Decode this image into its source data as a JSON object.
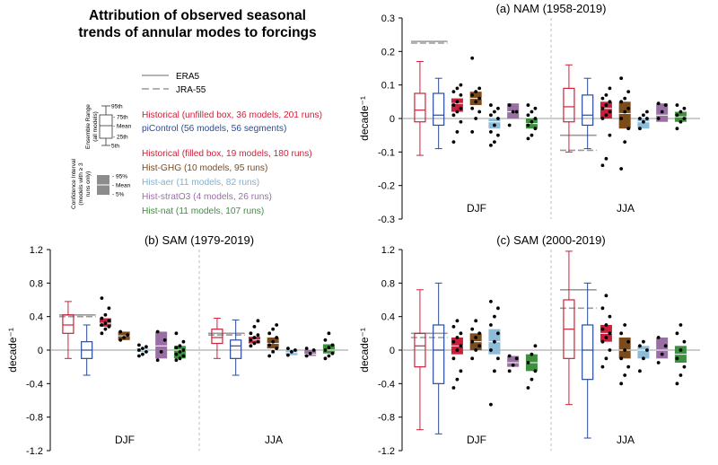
{
  "figure": {
    "title_lines": [
      "Attribution of observed seasonal",
      "trends of annular modes to forcings"
    ]
  },
  "legend": {
    "reanalyses": [
      {
        "label": "ERA5",
        "style": "solid",
        "color": "#a0a0a0"
      },
      {
        "label": "JRA-55",
        "style": "dashed",
        "color": "#a0a0a0"
      }
    ],
    "ensemble_range": {
      "title_lines": [
        "Ensemble Range",
        "(all models)"
      ],
      "labels": [
        "95th",
        "75th",
        "Mean",
        "25th",
        "5th"
      ]
    },
    "confidence_interval": {
      "title_lines": [
        "Confidence Interval",
        "(models with ≥ 3",
        "runs only)"
      ],
      "labels": [
        "95%",
        "Mean",
        "5%"
      ]
    },
    "entries": [
      {
        "text": "Historical (unfilled box, 36 models, 201 runs)",
        "color": "#d0213a"
      },
      {
        "text": "piControl (56 models, 56 segments)",
        "color": "#2a4b9b"
      },
      {
        "text": "Historical (filled box, 19 models, 180 runs)",
        "color": "#d0213a"
      },
      {
        "text": "Hist-GHG (10 models, 95 runs)",
        "color": "#7b4b1c"
      },
      {
        "text": "Hist-aer (11 models, 82 runs)",
        "color": "#7fb2d1"
      },
      {
        "text": "Hist-stratO3 (4 models, 26 runs)",
        "color": "#9a6fa6"
      },
      {
        "text": "Hist-nat (11 models, 107 runs)",
        "color": "#3e8f3e"
      }
    ]
  },
  "colors": {
    "historical": "#d0213a",
    "picontrol": "#2a4b9b",
    "hist_historical_fill": "#c8203a",
    "hist_ghg": "#7b4b1c",
    "hist_aer": "#8dbcd8",
    "hist_strato3": "#9a6fa6",
    "hist_nat": "#3e8f3e",
    "reanalysis": "#9a9a9a",
    "zero_line": "#9a9a9a"
  },
  "chart_data": [
    {
      "type": "box",
      "title": "(a) NAM (1958-2019)",
      "ylabel": "decade⁻¹",
      "ylim": [
        -0.3,
        0.3
      ],
      "yticks": [
        "-0.3",
        "-0.2",
        "-0.1",
        "0",
        "0.1",
        "0.2",
        "0.3"
      ],
      "seasons": [
        {
          "label": "DJF",
          "era5": 0.23,
          "jra55": 0.225,
          "ensemble_boxes": [
            {
              "series": "historical",
              "p5": -0.11,
              "p25": -0.01,
              "mean": 0.025,
              "p75": 0.075,
              "p95": 0.17
            },
            {
              "series": "picontrol",
              "p5": -0.09,
              "p25": -0.02,
              "mean": 0.01,
              "p75": 0.075,
              "p95": 0.12
            }
          ],
          "ci_boxes": [
            {
              "series": "hist_historical_fill",
              "p5": 0.02,
              "mean": 0.045,
              "p95": 0.06,
              "dots": [
                -0.07,
                -0.04,
                -0.01,
                0.01,
                0.02,
                0.03,
                0.04,
                0.05,
                0.07,
                0.08,
                0.09,
                0.1
              ]
            },
            {
              "series": "hist_ghg",
              "p5": 0.04,
              "mean": 0.06,
              "p95": 0.08,
              "dots": [
                -0.04,
                0.0,
                0.02,
                0.03,
                0.05,
                0.06,
                0.07,
                0.08,
                0.09,
                0.18
              ]
            },
            {
              "series": "hist_aer",
              "p5": -0.03,
              "mean": -0.01,
              "p95": 0.0,
              "dots": [
                -0.08,
                -0.07,
                -0.05,
                -0.04,
                -0.02,
                0.0,
                0.01,
                0.02,
                0.03,
                0.04
              ]
            },
            {
              "series": "hist_strato3",
              "p5": 0.0,
              "mean": 0.02,
              "p95": 0.045,
              "dots": [
                -0.02,
                0.02,
                0.02,
                0.04
              ]
            },
            {
              "series": "hist_nat",
              "p5": -0.03,
              "mean": -0.015,
              "p95": 0.0,
              "dots": [
                -0.06,
                -0.05,
                -0.03,
                -0.02,
                -0.01,
                0.0,
                0.01,
                0.02,
                0.03,
                0.04
              ]
            }
          ]
        },
        {
          "label": "JJA",
          "era5": -0.05,
          "jra55": -0.095,
          "ensemble_boxes": [
            {
              "series": "historical",
              "p5": -0.1,
              "p25": -0.01,
              "mean": 0.035,
              "p75": 0.09,
              "p95": 0.16
            },
            {
              "series": "picontrol",
              "p5": -0.09,
              "p25": -0.02,
              "mean": 0.01,
              "p75": 0.07,
              "p95": 0.12
            }
          ],
          "ci_boxes": [
            {
              "series": "hist_historical_fill",
              "p5": 0.0,
              "mean": 0.03,
              "p95": 0.05,
              "dots": [
                -0.14,
                -0.12,
                -0.05,
                0.0,
                0.01,
                0.02,
                0.03,
                0.04,
                0.05,
                0.06,
                0.07,
                0.09
              ]
            },
            {
              "series": "hist_ghg",
              "p5": -0.03,
              "mean": 0.015,
              "p95": 0.05,
              "dots": [
                -0.15,
                -0.07,
                -0.03,
                0.0,
                0.02,
                0.03,
                0.05,
                0.06,
                0.08,
                0.12
              ]
            },
            {
              "series": "hist_aer",
              "p5": -0.03,
              "mean": -0.01,
              "p95": 0.0,
              "dots": [
                -0.03,
                -0.01,
                0.0,
                0.0,
                0.01,
                0.02
              ]
            },
            {
              "series": "hist_strato3",
              "p5": -0.01,
              "mean": 0.01,
              "p95": 0.045,
              "dots": [
                0.0,
                0.02,
                0.04,
                0.045
              ]
            },
            {
              "series": "hist_nat",
              "p5": -0.01,
              "mean": 0.005,
              "p95": 0.02,
              "dots": [
                -0.03,
                -0.01,
                0.0,
                0.01,
                0.02,
                0.03,
                0.04
              ]
            }
          ]
        }
      ]
    },
    {
      "type": "box",
      "title": "(b) SAM (1979-2019)",
      "ylabel": "decade⁻¹",
      "ylim": [
        -1.2,
        1.2
      ],
      "yticks": [
        "-1.2",
        "-0.8",
        "-0.4",
        "0",
        "0.4",
        "0.8",
        "1.2"
      ],
      "seasons": [
        {
          "label": "DJF",
          "era5": 0.42,
          "jra55": 0.4,
          "ensemble_boxes": [
            {
              "series": "historical",
              "p5": -0.1,
              "p25": 0.2,
              "mean": 0.3,
              "p75": 0.42,
              "p95": 0.58
            },
            {
              "series": "picontrol",
              "p5": -0.3,
              "p25": -0.1,
              "mean": 0.0,
              "p75": 0.1,
              "p95": 0.3
            }
          ],
          "ci_boxes": [
            {
              "series": "hist_historical_fill",
              "p5": 0.28,
              "mean": 0.32,
              "p95": 0.38,
              "dots": [
                0.2,
                0.25,
                0.28,
                0.3,
                0.32,
                0.35,
                0.38,
                0.42,
                0.5,
                0.62
              ]
            },
            {
              "series": "hist_ghg",
              "p5": 0.12,
              "mean": 0.17,
              "p95": 0.22,
              "dots": [
                0.12,
                0.15,
                0.18,
                0.22
              ]
            },
            {
              "series": "hist_aer",
              "p5": -0.02,
              "mean": 0.0,
              "p95": 0.02,
              "dots": [
                -0.07,
                -0.05,
                -0.02,
                0.0,
                0.02,
                0.04,
                0.06
              ]
            },
            {
              "series": "hist_strato3",
              "p5": -0.1,
              "mean": 0.05,
              "p95": 0.22,
              "dots": [
                -0.12,
                -0.02,
                0.12,
                0.22
              ]
            },
            {
              "series": "hist_nat",
              "p5": -0.1,
              "mean": 0.0,
              "p95": 0.05,
              "dots": [
                -0.12,
                -0.1,
                -0.07,
                -0.05,
                -0.02,
                0.0,
                0.03,
                0.05,
                0.1,
                0.2
              ]
            }
          ]
        },
        {
          "label": "JJA",
          "era5": 0.2,
          "jra55": 0.18,
          "ensemble_boxes": [
            {
              "series": "historical",
              "p5": -0.1,
              "p25": 0.08,
              "mean": 0.15,
              "p75": 0.25,
              "p95": 0.38
            },
            {
              "series": "picontrol",
              "p5": -0.3,
              "p25": -0.1,
              "mean": 0.05,
              "p75": 0.12,
              "p95": 0.36
            }
          ],
          "ci_boxes": [
            {
              "series": "hist_historical_fill",
              "p5": 0.08,
              "mean": 0.12,
              "p95": 0.16,
              "dots": [
                0.05,
                0.08,
                0.1,
                0.12,
                0.15,
                0.18,
                0.2,
                0.28,
                0.35
              ]
            },
            {
              "series": "hist_ghg",
              "p5": 0.02,
              "mean": 0.08,
              "p95": 0.15,
              "dots": [
                -0.07,
                -0.02,
                0.02,
                0.06,
                0.1,
                0.15,
                0.2,
                0.25,
                0.3
              ]
            },
            {
              "series": "hist_aer",
              "p5": -0.06,
              "mean": -0.03,
              "p95": 0.0,
              "dots": [
                -0.06,
                -0.02,
                0.0,
                0.02
              ]
            },
            {
              "series": "hist_strato3",
              "p5": -0.07,
              "mean": -0.05,
              "p95": 0.0,
              "dots": [
                -0.07,
                -0.04,
                0.0,
                0.02
              ]
            },
            {
              "series": "hist_nat",
              "p5": -0.04,
              "mean": 0.0,
              "p95": 0.07,
              "dots": [
                -0.1,
                -0.07,
                -0.04,
                0.0,
                0.03,
                0.06,
                0.12,
                0.2
              ]
            }
          ]
        }
      ]
    },
    {
      "type": "box",
      "title": "(c) SAM (2000-2019)",
      "ylabel": "decade⁻¹",
      "ylim": [
        -1.2,
        1.2
      ],
      "yticks": [
        "-1.2",
        "-0.8",
        "-0.4",
        "0",
        "0.4",
        "0.8",
        "1.2"
      ],
      "seasons": [
        {
          "label": "DJF",
          "era5": 0.2,
          "jra55": 0.15,
          "ensemble_boxes": [
            {
              "series": "historical",
              "p5": -0.95,
              "p25": -0.2,
              "mean": 0.05,
              "p75": 0.2,
              "p95": 0.72
            },
            {
              "series": "picontrol",
              "p5": -1.0,
              "p25": -0.4,
              "mean": 0.0,
              "p75": 0.3,
              "p95": 0.8
            }
          ],
          "ci_boxes": [
            {
              "series": "hist_historical_fill",
              "p5": -0.05,
              "mean": 0.05,
              "p95": 0.15,
              "dots": [
                -0.45,
                -0.35,
                -0.25,
                -0.1,
                0.0,
                0.05,
                0.1,
                0.15,
                0.2,
                0.28,
                0.35
              ]
            },
            {
              "series": "hist_ghg",
              "p5": 0.0,
              "mean": 0.1,
              "p95": 0.2,
              "dots": [
                -0.1,
                0.0,
                0.05,
                0.1,
                0.15,
                0.2,
                0.25,
                0.35
              ]
            },
            {
              "series": "hist_aer",
              "p5": -0.05,
              "mean": 0.1,
              "p95": 0.25,
              "dots": [
                -0.65,
                -0.25,
                -0.1,
                0.0,
                0.1,
                0.2,
                0.3,
                0.4,
                0.5,
                0.58
              ]
            },
            {
              "series": "hist_strato3",
              "p5": -0.2,
              "mean": -0.15,
              "p95": -0.07,
              "dots": [
                -0.25,
                -0.18,
                -0.1,
                -0.07
              ]
            },
            {
              "series": "hist_nat",
              "p5": -0.25,
              "mean": -0.15,
              "p95": -0.05,
              "dots": [
                -0.45,
                -0.35,
                -0.25,
                -0.15,
                -0.05,
                0.05
              ]
            }
          ]
        },
        {
          "label": "JJA",
          "era5": 0.72,
          "jra55": 0.5,
          "ensemble_boxes": [
            {
              "series": "historical",
              "p5": -0.65,
              "p25": -0.1,
              "mean": 0.25,
              "p75": 0.6,
              "p95": 1.18
            },
            {
              "series": "picontrol",
              "p5": -1.05,
              "p25": -0.35,
              "mean": 0.0,
              "p75": 0.3,
              "p95": 0.8
            }
          ],
          "ci_boxes": [
            {
              "series": "hist_historical_fill",
              "p5": 0.1,
              "mean": 0.2,
              "p95": 0.3,
              "dots": [
                -0.2,
                -0.1,
                0.0,
                0.1,
                0.15,
                0.2,
                0.25,
                0.3,
                0.4,
                0.5,
                0.65
              ]
            },
            {
              "series": "hist_ghg",
              "p5": -0.1,
              "mean": 0.0,
              "p95": 0.15,
              "dots": [
                -0.4,
                -0.3,
                -0.2,
                -0.1,
                0.0,
                0.1,
                0.2,
                0.3
              ]
            },
            {
              "series": "hist_aer",
              "p5": -0.1,
              "mean": 0.0,
              "p95": 0.05,
              "dots": [
                -0.25,
                -0.1,
                0.0,
                0.05,
                0.1
              ]
            },
            {
              "series": "hist_strato3",
              "p5": -0.1,
              "mean": 0.0,
              "p95": 0.15,
              "dots": [
                -0.15,
                -0.05,
                0.05,
                0.15
              ]
            },
            {
              "series": "hist_nat",
              "p5": -0.15,
              "mean": -0.05,
              "p95": 0.05,
              "dots": [
                -0.4,
                -0.3,
                -0.2,
                -0.1,
                0.0,
                0.1,
                0.2,
                0.3
              ]
            }
          ]
        }
      ]
    }
  ]
}
